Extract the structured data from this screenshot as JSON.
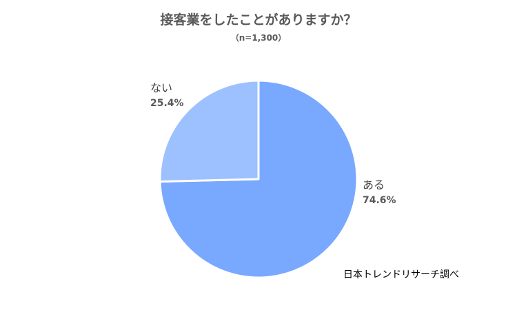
{
  "chart_data": {
    "type": "pie",
    "title": "接客業をしたことがありますか？",
    "subtitle": "（n=1,300）",
    "slices": [
      {
        "label": "ある",
        "value": 74.6,
        "value_label": "74.6%",
        "color": "#79A8FF"
      },
      {
        "label": "ない",
        "value": 25.4,
        "value_label": "25.4%",
        "color": "#9DC0FF"
      }
    ],
    "start_angle_deg": 0,
    "direction": "clockwise",
    "legend": "none",
    "source": "日本トレンドリサーチ調べ"
  }
}
